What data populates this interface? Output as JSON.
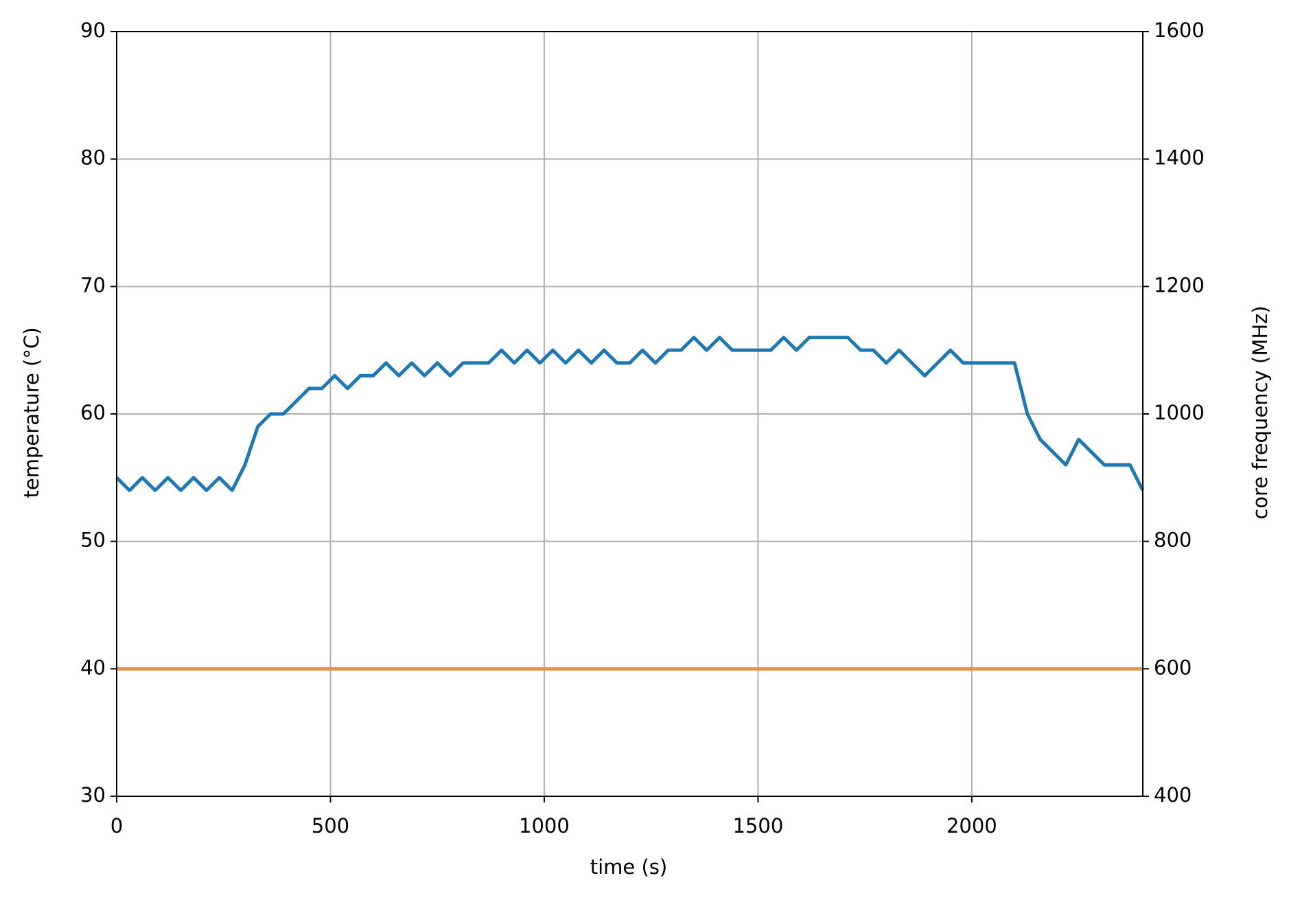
{
  "chart_data": {
    "type": "line",
    "xlabel": "time (s)",
    "ylabel": "temperature (°C)",
    "y2label": "core frequency (MHz)",
    "x": [
      0,
      30,
      60,
      90,
      120,
      150,
      180,
      210,
      240,
      270,
      300,
      330,
      360,
      390,
      420,
      450,
      480,
      510,
      540,
      570,
      600,
      630,
      660,
      690,
      720,
      750,
      780,
      810,
      840,
      870,
      900,
      930,
      960,
      990,
      1020,
      1050,
      1080,
      1110,
      1140,
      1170,
      1200,
      1230,
      1260,
      1290,
      1320,
      1350,
      1380,
      1410,
      1440,
      1470,
      1500,
      1530,
      1560,
      1590,
      1620,
      1650,
      1680,
      1710,
      1740,
      1770,
      1800,
      1830,
      1860,
      1890,
      1920,
      1950,
      1980,
      2010,
      2040,
      2070,
      2100,
      2130,
      2160,
      2190,
      2220,
      2250,
      2280,
      2310,
      2340,
      2370,
      2400
    ],
    "series": [
      {
        "color": "#1f77b4",
        "values": [
          55,
          54,
          55,
          54,
          55,
          54,
          55,
          54,
          55,
          54,
          56,
          59,
          60,
          60,
          61,
          62,
          62,
          63,
          62,
          63,
          63,
          64,
          63,
          64,
          63,
          64,
          63,
          64,
          64,
          64,
          65,
          64,
          65,
          64,
          65,
          64,
          65,
          64,
          65,
          64,
          64,
          65,
          64,
          65,
          65,
          66,
          65,
          66,
          65,
          65,
          65,
          65,
          66,
          65,
          66,
          66,
          66,
          66,
          65,
          65,
          64,
          65,
          64,
          63,
          64,
          65,
          64,
          64,
          64,
          64,
          64,
          60,
          58,
          57,
          56,
          58,
          57,
          56,
          56,
          56,
          54
        ]
      },
      {
        "color": "#e6944d",
        "axis": "y2",
        "values": [
          600,
          600,
          600,
          600,
          600,
          600,
          600,
          600,
          600,
          600,
          600,
          600,
          600,
          600,
          600,
          600,
          600,
          600,
          600,
          600,
          600,
          600,
          600,
          600,
          600,
          600,
          600,
          600,
          600,
          600,
          600,
          600,
          600,
          600,
          600,
          600,
          600,
          600,
          600,
          600,
          600,
          600,
          600,
          600,
          600,
          600,
          600,
          600,
          600,
          600,
          600,
          600,
          600,
          600,
          600,
          600,
          600,
          600,
          600,
          600,
          600,
          600,
          600,
          600,
          600,
          600,
          600,
          600,
          600,
          600,
          600,
          600,
          600,
          600,
          600,
          600,
          600,
          600,
          600,
          600,
          600
        ]
      }
    ],
    "xlim": [
      0,
      2400
    ],
    "xticks": [
      0,
      500,
      1000,
      1500,
      2000
    ],
    "ylim": [
      30,
      90
    ],
    "yticks": [
      30,
      40,
      50,
      60,
      70,
      80,
      90
    ],
    "y2lim": [
      400,
      1600
    ],
    "y2ticks": [
      400,
      600,
      800,
      1000,
      1200,
      1400,
      1600
    ],
    "grid": true
  }
}
